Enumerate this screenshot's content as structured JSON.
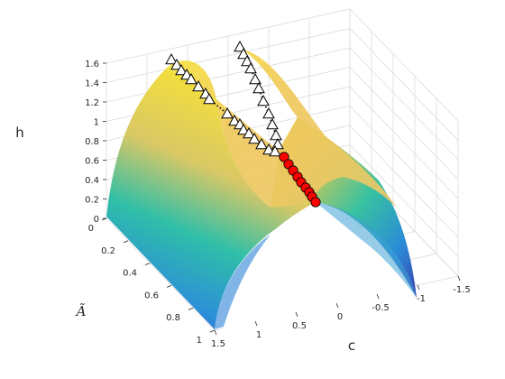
{
  "chart_data": {
    "type": "surface3d",
    "axes": {
      "x": {
        "label": "Ã",
        "ticks": [
          "0",
          "0.2",
          "0.4",
          "0.6",
          "0.8",
          "1"
        ]
      },
      "y": {
        "label": "c",
        "ticks": [
          "1.5",
          "1",
          "0.5",
          "0",
          "-0.5",
          "-1",
          "-1.5"
        ]
      },
      "z": {
        "label": "h",
        "ticks": [
          "0",
          "0.2",
          "0.4",
          "0.6",
          "0.8",
          "1",
          "1.2",
          "1.4",
          "1.6"
        ]
      }
    },
    "xlim": [
      0,
      1
    ],
    "ylim": [
      -1.5,
      1.5
    ],
    "zlim": [
      0,
      1.6
    ],
    "grid": true,
    "colormap": "parula",
    "surface": {
      "description_formula": "h = sqrt(c^2 + (1 - 2*Ã)^2 * (1 - c^2)) for |c| <= 1",
      "c_range": [
        -1,
        1
      ],
      "A_range": [
        0,
        1
      ]
    },
    "series": [
      {
        "marker": "triangle",
        "color": "#ffffff",
        "points": [
          {
            "A": 0.0,
            "c": 0.85,
            "h": 1.0
          },
          {
            "A": 0.05,
            "c": 0.8,
            "h": 0.97
          },
          {
            "A": 0.1,
            "c": 0.75,
            "h": 0.94
          },
          {
            "A": 0.15,
            "c": 0.72,
            "h": 0.91
          },
          {
            "A": 0.2,
            "c": 0.7,
            "h": 0.89
          },
          {
            "A": 0.3,
            "c": 0.66,
            "h": 0.82
          },
          {
            "A": 0.4,
            "c": 0.64,
            "h": 0.78
          },
          {
            "A": 0.45,
            "c": 0.63,
            "h": 0.76
          },
          {
            "A": 0.5,
            "c": 0.62,
            "h": 0.74
          },
          {
            "A": 0.0,
            "c": 0.2,
            "h": 1.0
          },
          {
            "A": 0.05,
            "c": 0.25,
            "h": 0.98
          },
          {
            "A": 0.1,
            "c": 0.3,
            "h": 0.96
          },
          {
            "A": 0.15,
            "c": 0.35,
            "h": 0.94
          },
          {
            "A": 0.2,
            "c": 0.4,
            "h": 0.9
          },
          {
            "A": 0.3,
            "c": 0.45,
            "h": 0.85
          },
          {
            "A": 0.4,
            "c": 0.52,
            "h": 0.8
          },
          {
            "A": 0.5,
            "c": 0.58,
            "h": 0.76
          }
        ]
      },
      {
        "marker": "circle",
        "color": "#ff0000",
        "points": [
          {
            "A": 0.55,
            "c": 0.6,
            "h": 0.73
          },
          {
            "A": 0.6,
            "c": 0.58,
            "h": 0.7
          },
          {
            "A": 0.65,
            "c": 0.55,
            "h": 0.67
          },
          {
            "A": 0.7,
            "c": 0.52,
            "h": 0.64
          },
          {
            "A": 0.75,
            "c": 0.5,
            "h": 0.62
          },
          {
            "A": 0.8,
            "c": 0.47,
            "h": 0.6
          },
          {
            "A": 0.85,
            "c": 0.45,
            "h": 0.58
          },
          {
            "A": 0.9,
            "c": 0.42,
            "h": 0.56
          },
          {
            "A": 0.95,
            "c": 0.4,
            "h": 0.55
          }
        ]
      }
    ]
  }
}
